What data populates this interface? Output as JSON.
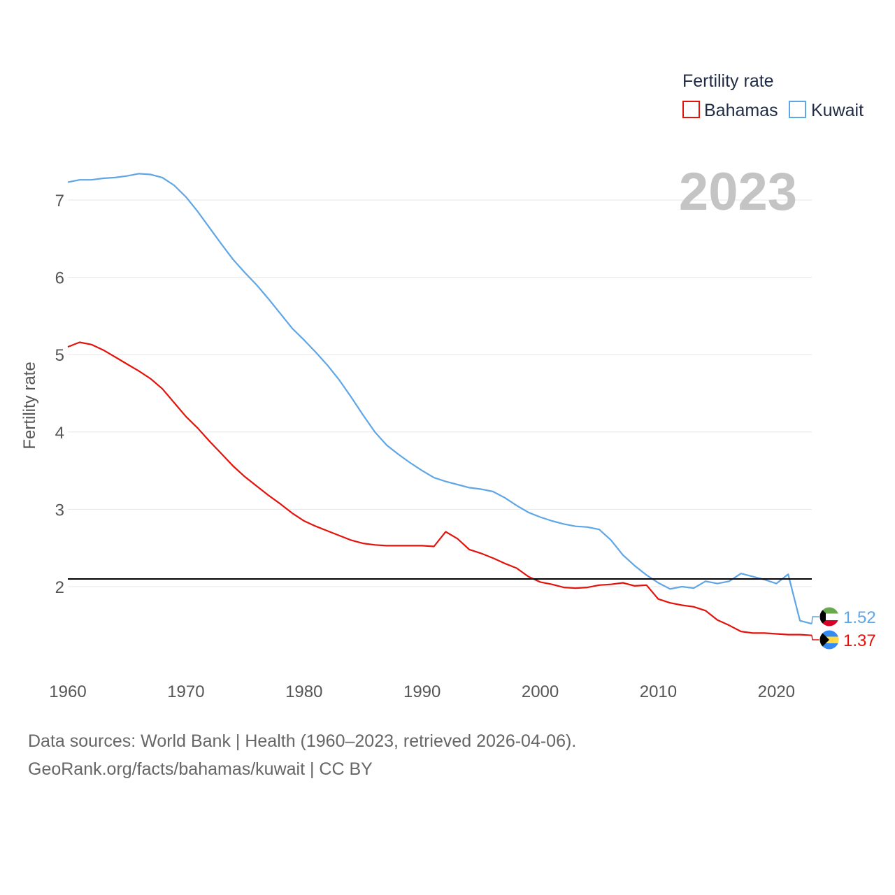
{
  "colors": {
    "bahamas": "#e3120b",
    "kuwait": "#5fa6e6",
    "reference": "#000000",
    "grid": "#e6e6e6"
  },
  "chart_data": {
    "type": "line",
    "title": "",
    "year_label": "2023",
    "ylabel": "Fertility rate",
    "xlabel": "",
    "xlim": [
      1960,
      2023
    ],
    "ylim": [
      1.0,
      7.5
    ],
    "x_ticks": [
      "1960",
      "1970",
      "1980",
      "1990",
      "2000",
      "2010",
      "2020"
    ],
    "y_ticks": [
      "2",
      "3",
      "4",
      "5",
      "6",
      "7"
    ],
    "reference_line": 2.1,
    "legend": {
      "title": "Fertility rate",
      "entries": [
        "Bahamas",
        "Kuwait"
      ],
      "placement": "top-right"
    },
    "x": [
      1960,
      1961,
      1962,
      1963,
      1964,
      1965,
      1966,
      1967,
      1968,
      1969,
      1970,
      1971,
      1972,
      1973,
      1974,
      1975,
      1976,
      1977,
      1978,
      1979,
      1980,
      1981,
      1982,
      1983,
      1984,
      1985,
      1986,
      1987,
      1988,
      1989,
      1990,
      1991,
      1992,
      1993,
      1994,
      1995,
      1996,
      1997,
      1998,
      1999,
      2000,
      2001,
      2002,
      2003,
      2004,
      2005,
      2006,
      2007,
      2008,
      2009,
      2010,
      2011,
      2012,
      2013,
      2014,
      2015,
      2016,
      2017,
      2018,
      2019,
      2020,
      2021,
      2022,
      2023
    ],
    "series": [
      {
        "name": "Bahamas",
        "end_label": "1.37",
        "flag": "bahamas-flag-icon",
        "values": [
          5.1,
          5.16,
          5.13,
          5.06,
          4.97,
          4.88,
          4.79,
          4.69,
          4.56,
          4.38,
          4.2,
          4.05,
          3.88,
          3.72,
          3.56,
          3.42,
          3.3,
          3.18,
          3.07,
          2.95,
          2.85,
          2.78,
          2.72,
          2.66,
          2.6,
          2.56,
          2.54,
          2.53,
          2.53,
          2.53,
          2.53,
          2.52,
          2.71,
          2.62,
          2.48,
          2.43,
          2.37,
          2.3,
          2.24,
          2.13,
          2.06,
          2.03,
          1.99,
          1.98,
          1.99,
          2.02,
          2.03,
          2.05,
          2.01,
          2.02,
          1.84,
          1.79,
          1.76,
          1.74,
          1.69,
          1.57,
          1.5,
          1.42,
          1.4,
          1.4,
          1.39,
          1.38,
          1.38,
          1.37
        ]
      },
      {
        "name": "Kuwait",
        "end_label": "1.52",
        "flag": "kuwait-flag-icon",
        "values": [
          7.23,
          7.26,
          7.26,
          7.28,
          7.29,
          7.31,
          7.34,
          7.33,
          7.29,
          7.19,
          7.04,
          6.85,
          6.64,
          6.43,
          6.23,
          6.06,
          5.9,
          5.72,
          5.53,
          5.34,
          5.19,
          5.03,
          4.86,
          4.67,
          4.45,
          4.22,
          4.0,
          3.83,
          3.71,
          3.6,
          3.5,
          3.41,
          3.36,
          3.32,
          3.28,
          3.26,
          3.23,
          3.15,
          3.05,
          2.96,
          2.9,
          2.85,
          2.81,
          2.78,
          2.77,
          2.74,
          2.6,
          2.41,
          2.27,
          2.15,
          2.05,
          1.97,
          2.0,
          1.98,
          2.07,
          2.04,
          2.07,
          2.17,
          2.13,
          2.09,
          2.04,
          2.16,
          1.56,
          1.52
        ]
      }
    ]
  },
  "footer": {
    "line1": "Data sources: World Bank | Health (1960–2023, retrieved 2026-04-06).",
    "line2": "GeoRank.org/facts/bahamas/kuwait | CC BY"
  }
}
